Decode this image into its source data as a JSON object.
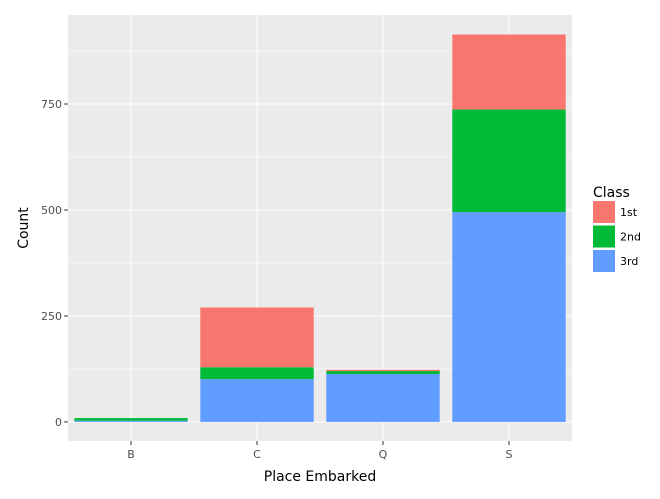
{
  "chart_data": {
    "type": "bar",
    "stacked": true,
    "categories": [
      "B",
      "C",
      "Q",
      "S"
    ],
    "series": [
      {
        "name": "3rd",
        "color": "#619CFF",
        "values": [
          3,
          101,
          113,
          495
        ]
      },
      {
        "name": "2nd",
        "color": "#00BA38",
        "values": [
          6,
          28,
          7,
          242
        ]
      },
      {
        "name": "1st",
        "color": "#F8766D",
        "values": [
          0,
          141,
          3,
          177
        ]
      }
    ],
    "xlabel": "Place Embarked",
    "ylabel": "Count",
    "yticks": [
      0,
      250,
      500,
      750
    ],
    "ylim": [
      -45,
      960
    ],
    "grid": true,
    "legend": {
      "title": "Class",
      "position": "right",
      "order": [
        "1st",
        "2nd",
        "3rd"
      ]
    }
  }
}
